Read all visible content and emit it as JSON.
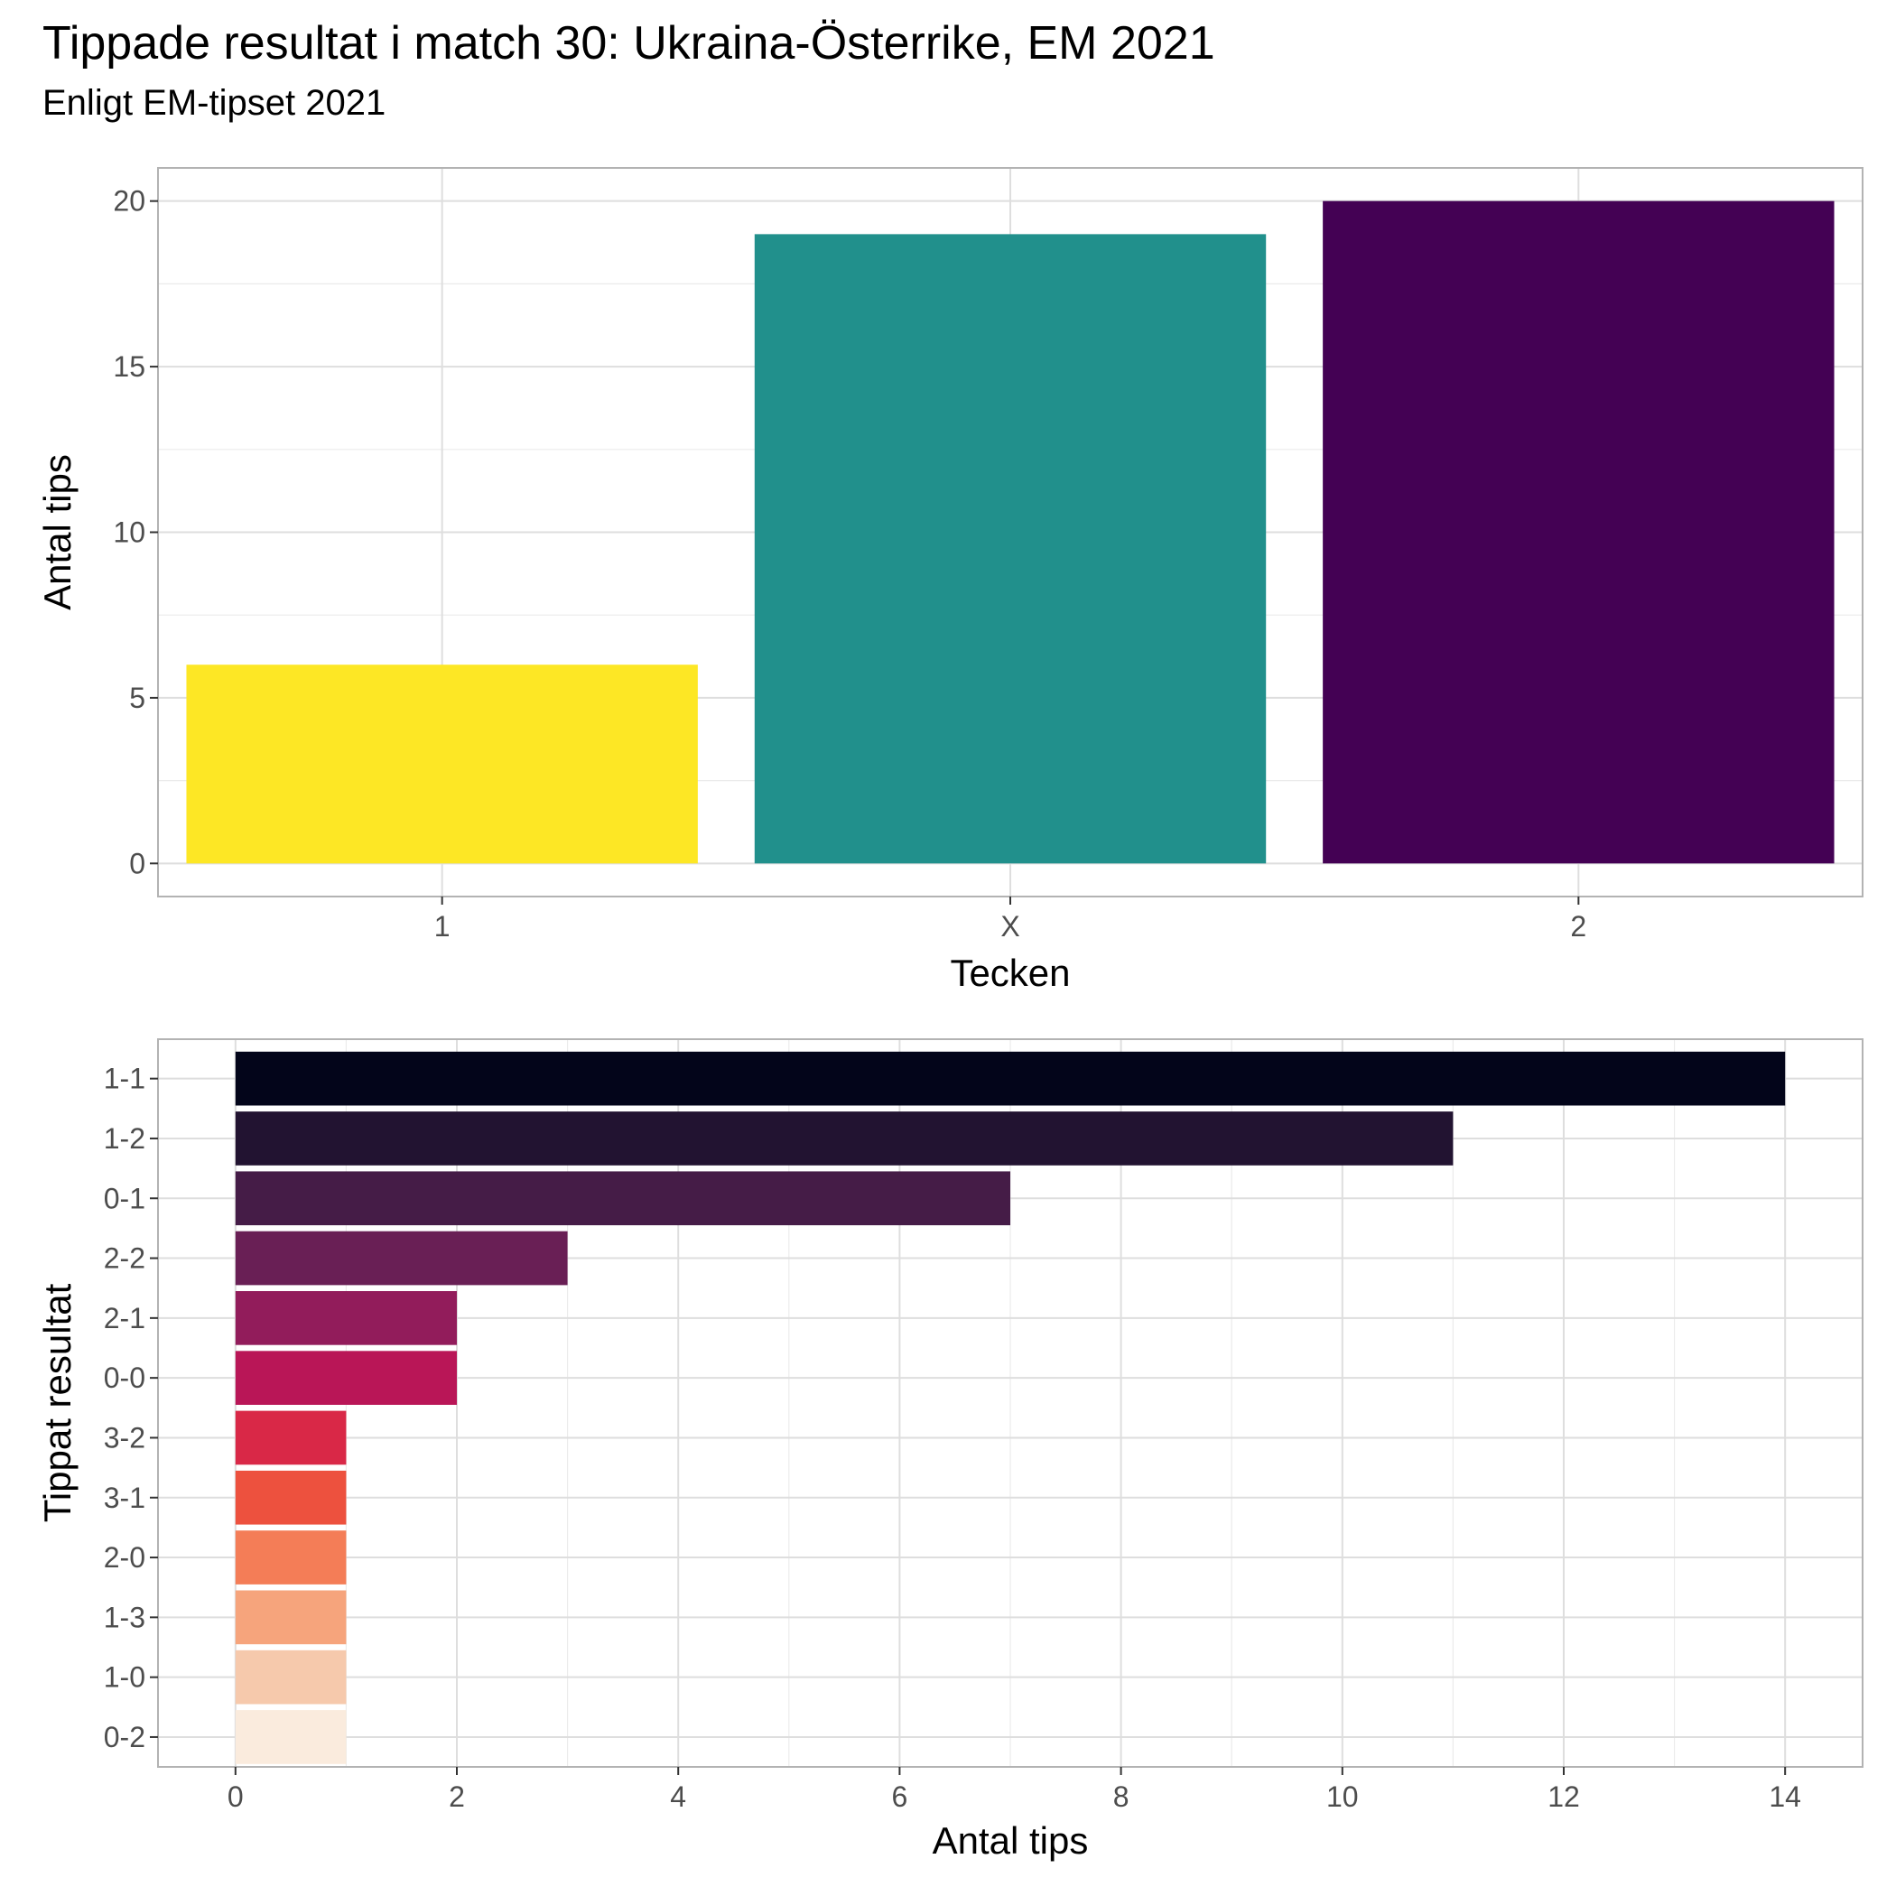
{
  "title": "Tippade resultat i match 30: Ukraina-Österrike, EM 2021",
  "subtitle": "Enligt EM-tipset 2021",
  "chart_data": [
    {
      "type": "bar",
      "orientation": "vertical",
      "categories": [
        "1",
        "X",
        "2"
      ],
      "values": [
        6,
        19,
        20
      ],
      "colors": [
        "#FDE725",
        "#21908C",
        "#440154"
      ],
      "xlabel": "Tecken",
      "ylabel": "Antal tips",
      "ylim": [
        -1,
        21
      ],
      "yticks": [
        0,
        5,
        10,
        15,
        20
      ],
      "grid": true,
      "legend": "none"
    },
    {
      "type": "bar",
      "orientation": "horizontal",
      "categories": [
        "1-1",
        "1-2",
        "0-1",
        "2-2",
        "2-1",
        "0-0",
        "3-2",
        "3-1",
        "2-0",
        "1-3",
        "1-0",
        "0-2"
      ],
      "values": [
        14,
        11,
        7,
        3,
        2,
        2,
        1,
        1,
        1,
        1,
        1,
        1
      ],
      "colors": [
        "#03051A",
        "#221331",
        "#451C47",
        "#691F55",
        "#921C5B",
        "#B91657",
        "#D92847",
        "#ED513E",
        "#F47D57",
        "#F6A47C",
        "#F6C9AC",
        "#FAEBDD"
      ],
      "xlabel": "Antal tips",
      "ylabel": "Tippat resultat",
      "xlim": [
        -0.7,
        14.7
      ],
      "xticks": [
        0,
        2,
        4,
        6,
        8,
        10,
        12,
        14
      ],
      "grid": true,
      "legend": "none"
    }
  ]
}
